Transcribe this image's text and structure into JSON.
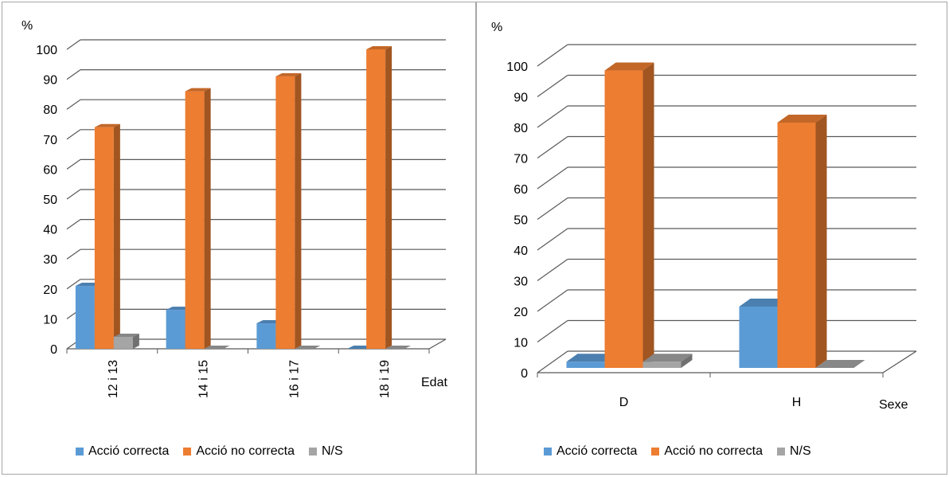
{
  "colors": {
    "accio_correcta": "#5b9bd5",
    "accio_no_correcta": "#ed7d31",
    "ns": "#a5a5a5",
    "grid": "#595959",
    "border": "#a6a6a6"
  },
  "legend": [
    "Acció correcta",
    "Acció no correcta",
    "N/S"
  ],
  "chart_data": [
    {
      "type": "bar",
      "style": "3d-clustered-column",
      "ylabel": "%",
      "xlabel": "Edat",
      "ylim": [
        0,
        100
      ],
      "yticks": [
        0,
        10,
        20,
        30,
        40,
        50,
        60,
        70,
        80,
        90,
        100
      ],
      "grid": true,
      "legend_position": "bottom",
      "categories": [
        "12 i 13",
        "14 i 15",
        "16 i 17",
        "18 i 19"
      ],
      "series": [
        {
          "name": "Acció correcta",
          "values": [
            21,
            13,
            8.5,
            0
          ]
        },
        {
          "name": "Acció no correcta",
          "values": [
            74,
            86,
            91,
            100
          ]
        },
        {
          "name": "N/S",
          "values": [
            4,
            0,
            0,
            0
          ]
        }
      ]
    },
    {
      "type": "bar",
      "style": "3d-clustered-column",
      "ylabel": "%",
      "xlabel": "Sexe",
      "ylim": [
        0,
        100
      ],
      "yticks": [
        0,
        10,
        20,
        30,
        40,
        50,
        60,
        70,
        80,
        90,
        100
      ],
      "grid": true,
      "legend_position": "bottom",
      "categories": [
        "D",
        "H"
      ],
      "series": [
        {
          "name": "Acció correcta",
          "values": [
            2,
            20
          ]
        },
        {
          "name": "Acció no correcta",
          "values": [
            97,
            80
          ]
        },
        {
          "name": "N/S",
          "values": [
            2,
            0
          ]
        }
      ]
    }
  ]
}
